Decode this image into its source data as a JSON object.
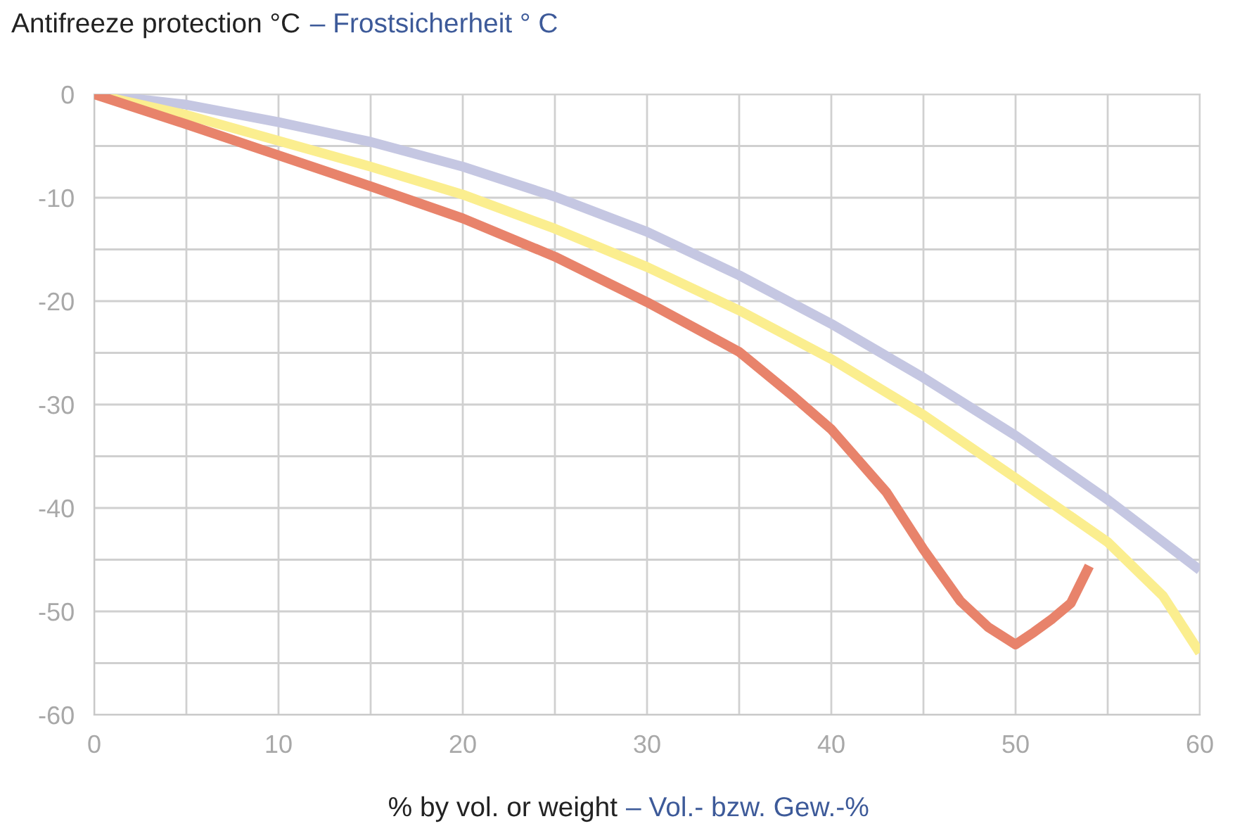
{
  "chart_data": {
    "type": "line",
    "title": "Antifreeze protection °C",
    "subtitle": "– Frostsicherheit ° C",
    "xlabel": "% by vol. or weight",
    "annotations": [
      "– Vol.- bzw. Gew.-%"
    ],
    "series": [
      {
        "color": "#c5c7e2",
        "x": [
          0,
          5,
          10,
          15,
          20,
          25,
          30,
          35,
          40,
          45,
          50,
          55,
          60
        ],
        "values": [
          0,
          -1,
          -2.7,
          -4.6,
          -7,
          -9.9,
          -13.3,
          -17.5,
          -22.2,
          -27.4,
          -33,
          -39.2,
          -46
        ]
      },
      {
        "color": "#fbee8f",
        "x": [
          0,
          5,
          10,
          15,
          20,
          25,
          30,
          35,
          40,
          45,
          50,
          55,
          58,
          60
        ],
        "values": [
          0,
          -2,
          -4.5,
          -7,
          -9.7,
          -13,
          -16.7,
          -20.9,
          -25.6,
          -31,
          -37.1,
          -43.3,
          -48.5,
          -54
        ]
      },
      {
        "color": "#e8836b",
        "x": [
          0,
          5,
          10,
          15,
          20,
          25,
          30,
          35,
          38,
          40,
          43,
          45,
          47,
          48.5,
          50,
          51,
          52,
          53,
          54
        ],
        "values": [
          0,
          -2.9,
          -5.9,
          -8.9,
          -12,
          -15.7,
          -20.1,
          -24.9,
          -29.3,
          -32.4,
          -38.5,
          -44,
          -49,
          -51.5,
          -53.2,
          -52,
          -50.7,
          -49.2,
          -45.6
        ]
      }
    ],
    "xlim": [
      0,
      60
    ],
    "ylim": [
      -60,
      0
    ],
    "xticks": [
      0,
      {
        "value": 5,
        "label": null
      },
      10,
      {
        "value": 15,
        "label": null
      },
      20,
      {
        "value": 25,
        "label": null
      },
      30,
      {
        "value": 35,
        "label": null
      },
      40,
      {
        "value": 45,
        "label": null
      },
      50,
      {
        "value": 55,
        "label": null
      },
      60
    ],
    "yticks": [
      -60,
      {
        "value": -55,
        "label": null
      },
      -50,
      {
        "value": -45,
        "label": null
      },
      -40,
      {
        "value": -35,
        "label": null
      },
      -30,
      {
        "value": -25,
        "label": null
      },
      -20,
      {
        "value": -15,
        "label": null
      },
      -10,
      {
        "value": -5,
        "label": null
      },
      0
    ],
    "grid": true,
    "marker": "none",
    "line_style": "solid"
  }
}
